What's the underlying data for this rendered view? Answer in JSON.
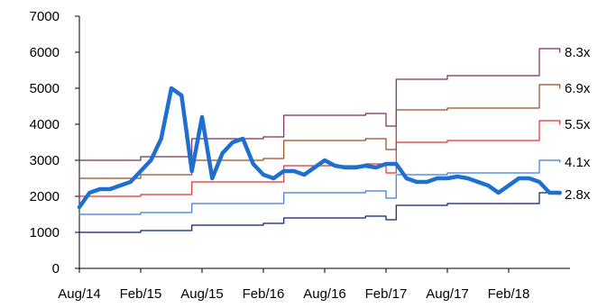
{
  "chart_data": {
    "type": "line",
    "title": "",
    "xlabel": "",
    "ylabel": "",
    "ylim": [
      0,
      7000
    ],
    "yticks": [
      0,
      1000,
      2000,
      3000,
      4000,
      5000,
      6000,
      7000
    ],
    "x_tick_labels": [
      "Aug/14",
      "Feb/15",
      "Aug/15",
      "Feb/16",
      "Aug/16",
      "Feb/17",
      "Aug/17",
      "Feb/18"
    ],
    "grid": false,
    "legend": "none",
    "series": [
      {
        "name": "8.3x",
        "color": "#7b2c5a",
        "style": "step",
        "x": [
          "Aug/14",
          "Dec/14",
          "Feb/15",
          "Jul/15",
          "Nov/15",
          "Feb/16",
          "Apr/16",
          "Dec/16",
          "Feb/17",
          "Mar/17",
          "Aug/17",
          "Mar/18",
          "May/18",
          "Jul/18"
        ],
        "values": [
          3000,
          3000,
          3100,
          3600,
          3600,
          3650,
          4250,
          4300,
          3950,
          5250,
          5350,
          5350,
          6100,
          6000
        ]
      },
      {
        "name": "6.9x",
        "color": "#9a4a1c",
        "style": "step",
        "x": [
          "Aug/14",
          "Dec/14",
          "Feb/15",
          "Jul/15",
          "Nov/15",
          "Feb/16",
          "Apr/16",
          "Dec/16",
          "Feb/17",
          "Mar/17",
          "Aug/17",
          "Mar/18",
          "May/18",
          "Jul/18"
        ],
        "values": [
          2500,
          2500,
          2600,
          3000,
          3000,
          3050,
          3550,
          3600,
          3300,
          4400,
          4450,
          4450,
          5100,
          5000
        ]
      },
      {
        "name": "5.5x",
        "color": "#e03030",
        "style": "step",
        "x": [
          "Aug/14",
          "Dec/14",
          "Feb/15",
          "Jul/15",
          "Nov/15",
          "Feb/16",
          "Apr/16",
          "Dec/16",
          "Feb/17",
          "Mar/17",
          "Aug/17",
          "Mar/18",
          "May/18",
          "Jul/18"
        ],
        "values": [
          2000,
          2000,
          2050,
          2400,
          2400,
          2400,
          2850,
          2900,
          2650,
          3500,
          3550,
          3550,
          4100,
          4000
        ]
      },
      {
        "name": "4.1x",
        "color": "#3b7be0",
        "style": "step",
        "x": [
          "Aug/14",
          "Dec/14",
          "Feb/15",
          "Jul/15",
          "Nov/15",
          "Feb/16",
          "Apr/16",
          "Dec/16",
          "Feb/17",
          "Mar/17",
          "Aug/17",
          "Mar/18",
          "May/18",
          "Jul/18"
        ],
        "values": [
          1500,
          1500,
          1550,
          1800,
          1800,
          1800,
          2100,
          2150,
          1950,
          2600,
          2650,
          2650,
          3000,
          2950
        ]
      },
      {
        "name": "2.8x",
        "color": "#0a1e78",
        "style": "step",
        "x": [
          "Aug/14",
          "Dec/14",
          "Feb/15",
          "Jul/15",
          "Nov/15",
          "Feb/16",
          "Apr/16",
          "Dec/16",
          "Feb/17",
          "Mar/17",
          "Aug/17",
          "Mar/18",
          "May/18",
          "Jul/18"
        ],
        "values": [
          1000,
          1000,
          1050,
          1200,
          1200,
          1250,
          1400,
          1450,
          1350,
          1750,
          1800,
          1800,
          2100,
          2050
        ]
      },
      {
        "name": "",
        "color": "#1f6fd1",
        "style": "thick",
        "x": [
          "Aug/14",
          "Sep/14",
          "Oct/14",
          "Nov/14",
          "Dec/14",
          "Jan/15",
          "Feb/15",
          "Mar/15",
          "Apr/15",
          "May/15",
          "Jun/15",
          "Jul/15",
          "Aug/15",
          "Sep/15",
          "Oct/15",
          "Nov/15",
          "Dec/15",
          "Jan/16",
          "Feb/16",
          "Mar/16",
          "Apr/16",
          "May/16",
          "Jun/16",
          "Jul/16",
          "Aug/16",
          "Sep/16",
          "Oct/16",
          "Nov/16",
          "Dec/16",
          "Jan/17",
          "Feb/17",
          "Mar/17",
          "Apr/17",
          "May/17",
          "Jun/17",
          "Jul/17",
          "Aug/17",
          "Sep/17",
          "Oct/17",
          "Nov/17",
          "Dec/17",
          "Jan/18",
          "Feb/18",
          "Mar/18",
          "Apr/18",
          "May/18",
          "Jun/18",
          "Jul/18"
        ],
        "values": [
          1700,
          2100,
          2200,
          2200,
          2300,
          2400,
          2700,
          3000,
          3600,
          5000,
          4800,
          2700,
          4200,
          2500,
          3200,
          3500,
          3600,
          2900,
          2600,
          2500,
          2700,
          2700,
          2600,
          2800,
          3000,
          2850,
          2800,
          2800,
          2850,
          2800,
          2900,
          2900,
          2500,
          2400,
          2400,
          2500,
          2500,
          2550,
          2500,
          2400,
          2300,
          2100,
          2300,
          2500,
          2500,
          2400,
          2100,
          2100
        ]
      }
    ]
  }
}
